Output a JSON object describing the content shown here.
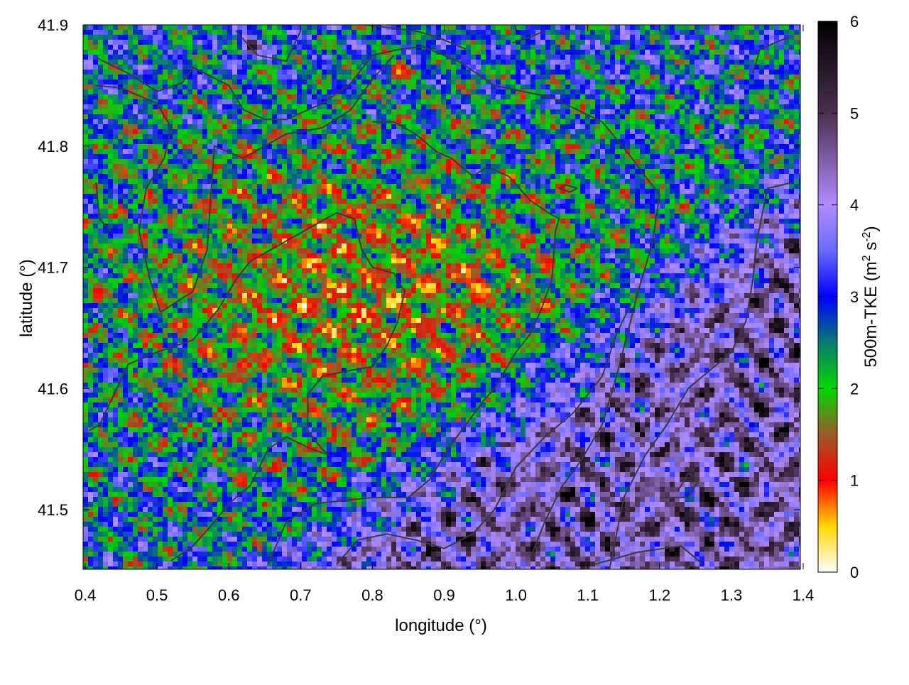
{
  "chart_data": {
    "type": "heatmap",
    "title": "",
    "xlabel": "longitude (°)",
    "ylabel": "latitude (°)",
    "colorbar_label_main": "500m-TKE (m",
    "colorbar_label_sup1": "2",
    "colorbar_label_mid": " s",
    "colorbar_label_sup2": "-2",
    "colorbar_label_end": ")",
    "xlim": [
      0.4,
      1.4
    ],
    "ylim": [
      41.45,
      41.9
    ],
    "zlim": [
      0,
      6
    ],
    "x_ticks": [
      "0.4",
      "0.5",
      "0.6",
      "0.7",
      "0.8",
      "0.9",
      "1.0",
      "1.1",
      "1.2",
      "1.3",
      "1.4"
    ],
    "x_tick_values": [
      0.4,
      0.5,
      0.6,
      0.7,
      0.8,
      0.9,
      1.0,
      1.1,
      1.2,
      1.3,
      1.4
    ],
    "y_ticks": [
      "41.5",
      "41.6",
      "41.7",
      "41.8",
      "41.9"
    ],
    "y_tick_values": [
      41.5,
      41.6,
      41.7,
      41.8,
      41.9
    ],
    "colorbar_ticks": [
      "0",
      "1",
      "2",
      "3",
      "4",
      "5",
      "6"
    ],
    "colorbar_tick_values": [
      0,
      1,
      2,
      3,
      4,
      5,
      6
    ],
    "colormap": [
      {
        "value": 0.0,
        "color": "#ffffff"
      },
      {
        "value": 0.5,
        "color": "#ffd700"
      },
      {
        "value": 1.0,
        "color": "#ff0000"
      },
      {
        "value": 1.5,
        "color": "#9c5a2a"
      },
      {
        "value": 2.0,
        "color": "#00d800"
      },
      {
        "value": 2.5,
        "color": "#0a7a70"
      },
      {
        "value": 3.0,
        "color": "#0000ff"
      },
      {
        "value": 3.5,
        "color": "#6a6aff"
      },
      {
        "value": 4.0,
        "color": "#b08cff"
      },
      {
        "value": 5.0,
        "color": "#4a3050"
      },
      {
        "value": 6.0,
        "color": "#000000"
      }
    ],
    "field_description_regions": [
      {
        "region": "center-north",
        "typical_tke": 1.6
      },
      {
        "region": "south-east",
        "typical_tke": 4.3
      }
    ],
    "hotspots": [
      {
        "lon": 0.948,
        "lat": 41.683,
        "tke": 0.4
      },
      {
        "lon": 0.838,
        "lat": 41.862,
        "tke": 0.5
      },
      {
        "lon": 0.632,
        "lat": 41.882,
        "tke": 5.8
      },
      {
        "lon": 0.417,
        "lat": 41.678,
        "tke": 0.9
      },
      {
        "lon": 0.62,
        "lat": 41.62,
        "tke": 0.8
      }
    ],
    "boundary_lines": [
      [
        [
          0.415,
          41.873
        ],
        [
          0.46,
          41.86
        ],
        [
          0.5,
          41.845
        ],
        [
          0.535,
          41.852
        ],
        [
          0.55,
          41.865
        ],
        [
          0.6,
          41.85
        ],
        [
          0.62,
          41.83
        ],
        [
          0.65,
          41.822
        ],
        [
          0.68,
          41.822
        ],
        [
          0.73,
          41.835
        ],
        [
          0.77,
          41.852
        ],
        [
          0.8,
          41.875
        ],
        [
          0.84,
          41.88
        ],
        [
          0.87,
          41.882
        ],
        [
          0.92,
          41.87
        ],
        [
          0.97,
          41.85
        ],
        [
          1.05,
          41.84
        ],
        [
          1.12,
          41.82
        ],
        [
          1.155,
          41.795
        ],
        [
          1.18,
          41.775
        ],
        [
          1.2,
          41.76
        ],
        [
          1.19,
          41.72
        ],
        [
          1.17,
          41.68
        ],
        [
          1.155,
          41.645
        ],
        [
          1.14,
          41.61
        ],
        [
          1.12,
          41.57
        ],
        [
          1.09,
          41.54
        ],
        [
          1.065,
          41.52
        ],
        [
          1.04,
          41.49
        ],
        [
          1.02,
          41.46
        ]
      ],
      [
        [
          0.415,
          41.85
        ],
        [
          0.45,
          41.848
        ],
        [
          0.5,
          41.835
        ],
        [
          0.52,
          41.815
        ],
        [
          0.51,
          41.79
        ],
        [
          0.485,
          41.765
        ],
        [
          0.475,
          41.73
        ],
        [
          0.49,
          41.69
        ],
        [
          0.505,
          41.663
        ],
        [
          0.55,
          41.68
        ],
        [
          0.57,
          41.715
        ],
        [
          0.575,
          41.76
        ],
        [
          0.58,
          41.8
        ],
        [
          0.62,
          41.79
        ],
        [
          0.68,
          41.81
        ],
        [
          0.73,
          41.815
        ],
        [
          0.77,
          41.83
        ],
        [
          0.8,
          41.855
        ],
        [
          0.83,
          41.875
        ]
      ],
      [
        [
          0.405,
          41.565
        ],
        [
          0.42,
          41.57
        ],
        [
          0.44,
          41.595
        ],
        [
          0.46,
          41.62
        ],
        [
          0.5,
          41.63
        ],
        [
          0.55,
          41.64
        ],
        [
          0.585,
          41.665
        ],
        [
          0.61,
          41.69
        ],
        [
          0.63,
          41.705
        ],
        [
          0.66,
          41.715
        ],
        [
          0.72,
          41.735
        ],
        [
          0.75,
          41.745
        ],
        [
          0.775,
          41.74
        ],
        [
          0.785,
          41.715
        ],
        [
          0.8,
          41.7
        ],
        [
          0.83,
          41.695
        ],
        [
          0.845,
          41.68
        ],
        [
          0.835,
          41.655
        ],
        [
          0.82,
          41.635
        ],
        [
          0.8,
          41.618
        ],
        [
          0.77,
          41.615
        ],
        [
          0.73,
          41.61
        ],
        [
          0.71,
          41.595
        ],
        [
          0.71,
          41.565
        ],
        [
          0.73,
          41.55
        ],
        [
          0.74,
          41.545
        ],
        [
          0.715,
          41.55
        ],
        [
          0.68,
          41.56
        ],
        [
          0.655,
          41.55
        ],
        [
          0.63,
          41.52
        ],
        [
          0.6,
          41.505
        ],
        [
          0.58,
          41.49
        ],
        [
          0.55,
          41.47
        ],
        [
          0.52,
          41.458
        ]
      ],
      [
        [
          0.655,
          41.455
        ],
        [
          0.68,
          41.49
        ],
        [
          0.72,
          41.505
        ],
        [
          0.8,
          41.51
        ],
        [
          0.85,
          41.51
        ],
        [
          0.88,
          41.525
        ],
        [
          0.905,
          41.55
        ],
        [
          0.93,
          41.57
        ],
        [
          0.955,
          41.59
        ],
        [
          0.97,
          41.6
        ],
        [
          0.985,
          41.615
        ],
        [
          1.0,
          41.63
        ],
        [
          1.02,
          41.645
        ],
        [
          1.035,
          41.665
        ],
        [
          1.05,
          41.69
        ],
        [
          1.055,
          41.73
        ],
        [
          1.06,
          41.74
        ],
        [
          1.045,
          41.745
        ],
        [
          1.02,
          41.755
        ],
        [
          0.99,
          41.775
        ],
        [
          0.96,
          41.783
        ],
        [
          0.94,
          41.775
        ],
        [
          0.91,
          41.79
        ],
        [
          0.89,
          41.795
        ],
        [
          0.86,
          41.81
        ],
        [
          0.83,
          41.82
        ],
        [
          0.8,
          41.82
        ]
      ],
      [
        [
          0.75,
          41.455
        ],
        [
          0.78,
          41.475
        ],
        [
          0.82,
          41.48
        ],
        [
          0.86,
          41.475
        ],
        [
          0.9,
          41.468
        ],
        [
          0.94,
          41.48
        ],
        [
          0.97,
          41.5
        ],
        [
          1.0,
          41.535
        ],
        [
          1.04,
          41.56
        ],
        [
          1.08,
          41.58
        ],
        [
          1.12,
          41.61
        ],
        [
          1.14,
          41.645
        ],
        [
          1.16,
          41.67
        ]
      ],
      [
        [
          1.11,
          41.455
        ],
        [
          1.17,
          41.465
        ],
        [
          1.23,
          41.47
        ],
        [
          1.26,
          41.455
        ]
      ],
      [
        [
          1.2,
          41.51
        ],
        [
          1.24,
          41.51
        ],
        [
          1.255,
          41.525
        ],
        [
          1.24,
          41.53
        ],
        [
          1.225,
          41.515
        ]
      ],
      [
        [
          1.13,
          41.45
        ],
        [
          1.15,
          41.51
        ],
        [
          1.18,
          41.545
        ],
        [
          1.21,
          41.57
        ],
        [
          1.24,
          41.6
        ],
        [
          1.27,
          41.615
        ],
        [
          1.3,
          41.63
        ],
        [
          1.32,
          41.655
        ],
        [
          1.33,
          41.69
        ],
        [
          1.335,
          41.72
        ],
        [
          1.35,
          41.765
        ],
        [
          1.385,
          41.77
        ]
      ],
      [
        [
          1.38,
          41.89
        ],
        [
          1.34,
          41.88
        ],
        [
          1.33,
          41.86
        ]
      ],
      [
        [
          0.415,
          41.77
        ],
        [
          0.42,
          41.74
        ],
        [
          0.435,
          41.73
        ]
      ],
      [
        [
          0.61,
          41.895
        ],
        [
          0.64,
          41.875
        ],
        [
          0.68,
          41.87
        ],
        [
          0.7,
          41.895
        ]
      ],
      [
        [
          0.79,
          41.9
        ],
        [
          0.86,
          41.895
        ],
        [
          0.89,
          41.89
        ],
        [
          0.93,
          41.88
        ]
      ],
      [
        [
          0.995,
          41.885
        ],
        [
          1.02,
          41.89
        ],
        [
          1.04,
          41.895
        ]
      ],
      [
        [
          1.06,
          41.765
        ],
        [
          1.075,
          41.762
        ],
        [
          1.085,
          41.765
        ],
        [
          1.07,
          41.768
        ],
        [
          1.06,
          41.765
        ]
      ]
    ]
  }
}
